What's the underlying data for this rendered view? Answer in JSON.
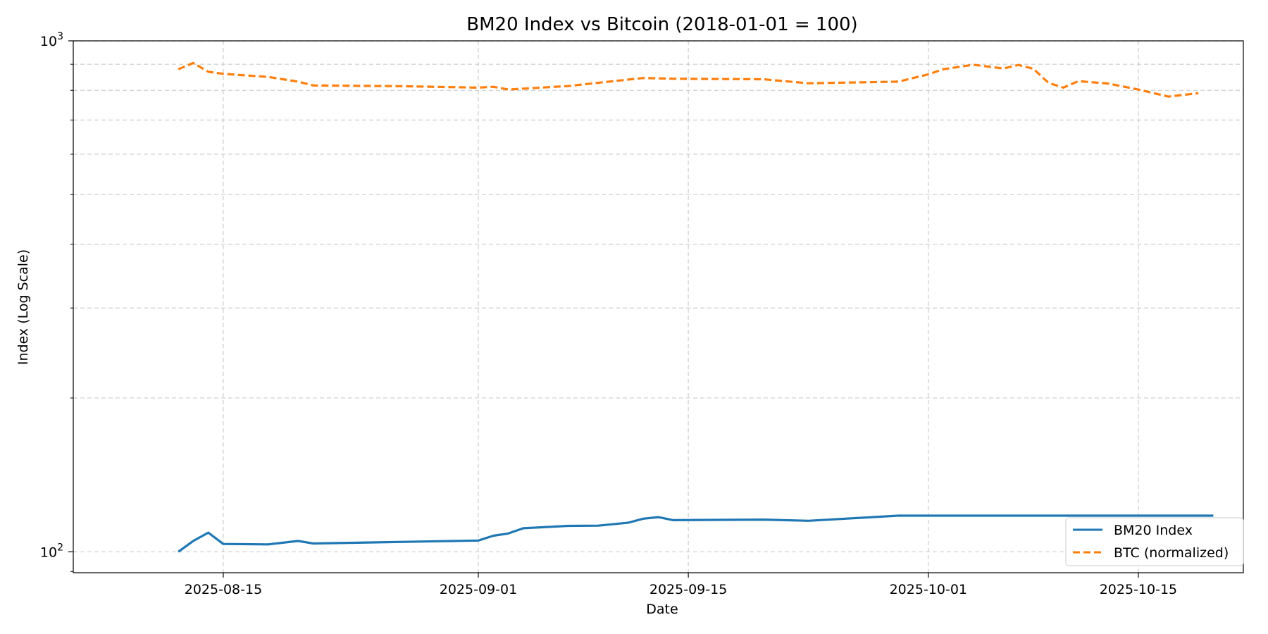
{
  "chart_data": {
    "type": "line",
    "title": "BM20 Index vs Bitcoin (2018-01-01 = 100)",
    "xlabel": "Date",
    "ylabel": "Index (Log Scale)",
    "x_axis_type": "date",
    "xlim": [
      "2025-08-05",
      "2025-10-22"
    ],
    "ylim": [
      91,
      1000
    ],
    "y_scale": "log",
    "x_ticks": [
      "2025-08-15",
      "2025-09-01",
      "2025-09-15",
      "2025-10-01",
      "2025-10-15"
    ],
    "y_ticks": [
      {
        "value": 100,
        "base": "10",
        "exp": "2"
      },
      {
        "value": 1000,
        "base": "10",
        "exp": "3"
      }
    ],
    "grid": true,
    "legend_position": "bottom-right",
    "series": [
      {
        "name": "BM20 Index",
        "color": "#1f77b4",
        "style": "solid",
        "points": [
          [
            "2025-08-12",
            100
          ],
          [
            "2025-08-13",
            105
          ],
          [
            "2025-08-14",
            109
          ],
          [
            "2025-08-15",
            103.6
          ],
          [
            "2025-08-18",
            103.4
          ],
          [
            "2025-08-20",
            105
          ],
          [
            "2025-08-21",
            103.8
          ],
          [
            "2025-09-01",
            105.2
          ],
          [
            "2025-09-02",
            107.5
          ],
          [
            "2025-09-03",
            108.6
          ],
          [
            "2025-09-04",
            111.2
          ],
          [
            "2025-09-07",
            112.4
          ],
          [
            "2025-09-09",
            112.5
          ],
          [
            "2025-09-11",
            114
          ],
          [
            "2025-09-12",
            116.1
          ],
          [
            "2025-09-13",
            116.9
          ],
          [
            "2025-09-14",
            115.3
          ],
          [
            "2025-09-20",
            115.6
          ],
          [
            "2025-09-23",
            115
          ],
          [
            "2025-09-29",
            117.7
          ],
          [
            "2025-10-20",
            117.7
          ]
        ]
      },
      {
        "name": "BTC (normalized)",
        "color": "#ff7f0e",
        "style": "dashed",
        "points": [
          [
            "2025-08-12",
            880
          ],
          [
            "2025-08-13",
            905
          ],
          [
            "2025-08-14",
            870
          ],
          [
            "2025-08-15",
            862
          ],
          [
            "2025-08-18",
            850
          ],
          [
            "2025-08-20",
            832
          ],
          [
            "2025-08-21",
            818
          ],
          [
            "2025-08-27",
            815
          ],
          [
            "2025-09-01",
            810
          ],
          [
            "2025-09-02",
            813
          ],
          [
            "2025-09-03",
            803
          ],
          [
            "2025-09-07",
            816
          ],
          [
            "2025-09-09",
            828
          ],
          [
            "2025-09-12",
            846
          ],
          [
            "2025-09-14",
            843
          ],
          [
            "2025-09-20",
            841
          ],
          [
            "2025-09-23",
            826
          ],
          [
            "2025-09-29",
            832
          ],
          [
            "2025-10-01",
            860
          ],
          [
            "2025-10-02",
            880
          ],
          [
            "2025-10-04",
            898
          ],
          [
            "2025-10-06",
            883
          ],
          [
            "2025-10-07",
            897
          ],
          [
            "2025-10-08",
            882
          ],
          [
            "2025-10-09",
            828
          ],
          [
            "2025-10-10",
            810
          ],
          [
            "2025-10-11",
            834
          ],
          [
            "2025-10-13",
            825
          ],
          [
            "2025-10-15",
            803
          ],
          [
            "2025-10-17",
            778
          ],
          [
            "2025-10-19",
            790
          ]
        ]
      }
    ]
  }
}
